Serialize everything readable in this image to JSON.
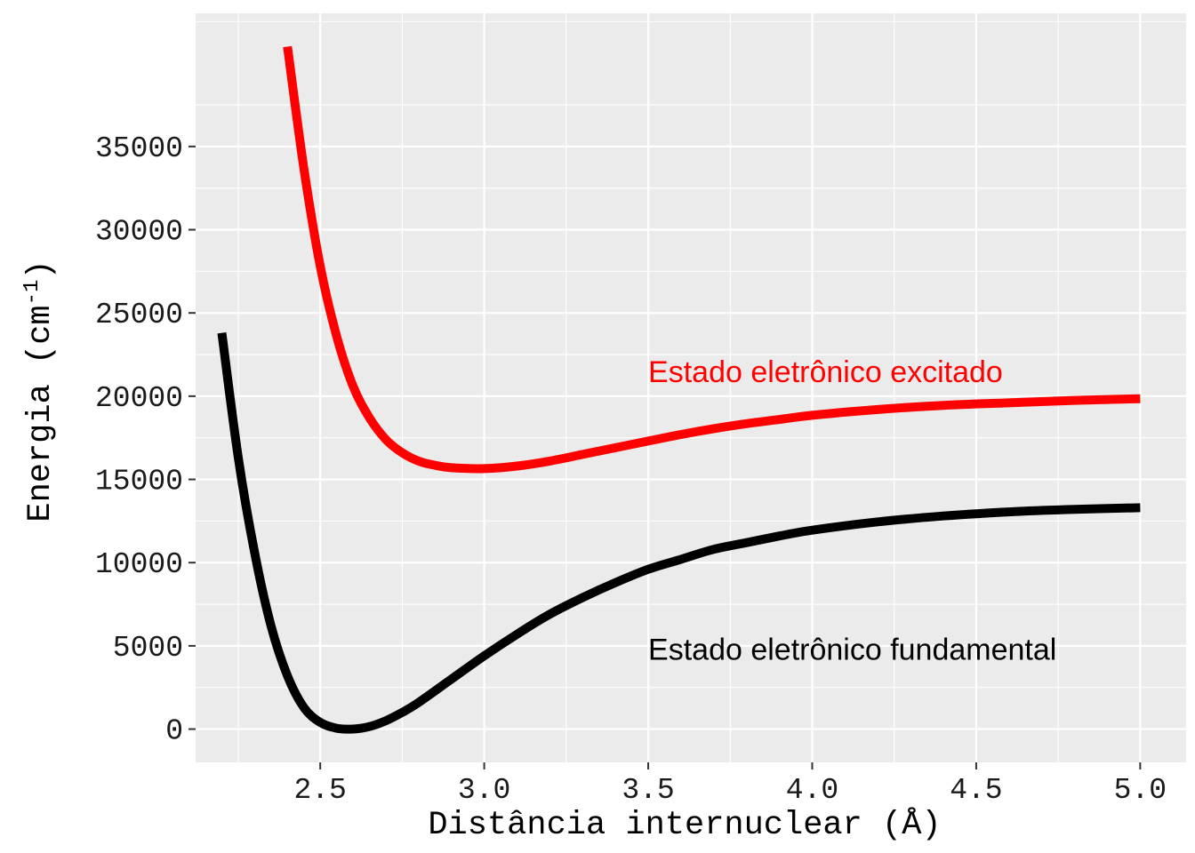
{
  "chart_data": {
    "type": "line",
    "xlabel": "Distância internuclear (Å)",
    "ylabel_main": "Energia (cm",
    "ylabel_sup": "-1",
    "ylabel_close": ")",
    "xlim": [
      2.12,
      5.14
    ],
    "ylim": [
      -2000,
      43000
    ],
    "x_ticks": [
      {
        "value": 2.5,
        "label": "2.5"
      },
      {
        "value": 3.0,
        "label": "3.0"
      },
      {
        "value": 3.5,
        "label": "3.5"
      },
      {
        "value": 4.0,
        "label": "4.0"
      },
      {
        "value": 4.5,
        "label": "4.5"
      },
      {
        "value": 5.0,
        "label": "5.0"
      }
    ],
    "y_ticks": [
      {
        "value": 0,
        "label": "0"
      },
      {
        "value": 5000,
        "label": "5000"
      },
      {
        "value": 10000,
        "label": "10000"
      },
      {
        "value": 15000,
        "label": "15000"
      },
      {
        "value": 20000,
        "label": "20000"
      },
      {
        "value": 25000,
        "label": "25000"
      },
      {
        "value": 30000,
        "label": "30000"
      },
      {
        "value": 35000,
        "label": "35000"
      }
    ],
    "grid": true,
    "legend": "none",
    "series": [
      {
        "color": "#000000",
        "points": [
          [
            2.2,
            23800
          ],
          [
            2.25,
            16300
          ],
          [
            2.3,
            10600
          ],
          [
            2.35,
            6200
          ],
          [
            2.4,
            3200
          ],
          [
            2.45,
            1300
          ],
          [
            2.5,
            400
          ],
          [
            2.55,
            50
          ],
          [
            2.6,
            0
          ],
          [
            2.65,
            150
          ],
          [
            2.7,
            500
          ],
          [
            2.75,
            1000
          ],
          [
            2.8,
            1600
          ],
          [
            2.9,
            3000
          ],
          [
            3.0,
            4400
          ],
          [
            3.1,
            5700
          ],
          [
            3.2,
            6900
          ],
          [
            3.3,
            7900
          ],
          [
            3.4,
            8800
          ],
          [
            3.5,
            9600
          ],
          [
            3.6,
            10200
          ],
          [
            3.7,
            10800
          ],
          [
            3.8,
            11200
          ],
          [
            3.9,
            11600
          ],
          [
            4.0,
            11950
          ],
          [
            4.2,
            12450
          ],
          [
            4.4,
            12800
          ],
          [
            4.6,
            13050
          ],
          [
            4.8,
            13200
          ],
          [
            5.0,
            13300
          ]
        ]
      },
      {
        "color": "#ff0000",
        "points": [
          [
            2.4,
            41000
          ],
          [
            2.45,
            33700
          ],
          [
            2.5,
            27800
          ],
          [
            2.55,
            23600
          ],
          [
            2.6,
            20600
          ],
          [
            2.65,
            18700
          ],
          [
            2.7,
            17400
          ],
          [
            2.75,
            16600
          ],
          [
            2.8,
            16100
          ],
          [
            2.85,
            15850
          ],
          [
            2.9,
            15700
          ],
          [
            3.0,
            15650
          ],
          [
            3.1,
            15800
          ],
          [
            3.2,
            16100
          ],
          [
            3.3,
            16500
          ],
          [
            3.4,
            16900
          ],
          [
            3.5,
            17300
          ],
          [
            3.6,
            17700
          ],
          [
            3.7,
            18050
          ],
          [
            3.8,
            18350
          ],
          [
            3.9,
            18600
          ],
          [
            4.0,
            18850
          ],
          [
            4.2,
            19200
          ],
          [
            4.4,
            19450
          ],
          [
            4.6,
            19600
          ],
          [
            4.8,
            19750
          ],
          [
            5.0,
            19850
          ]
        ]
      }
    ],
    "annotations": [
      {
        "text": "Estado eletrônico excitado",
        "x": 3.5,
        "y": 21500,
        "color": "#ff0000"
      },
      {
        "text": "Estado eletrônico fundamental",
        "x": 3.5,
        "y": 4800,
        "color": "#000000"
      }
    ]
  }
}
